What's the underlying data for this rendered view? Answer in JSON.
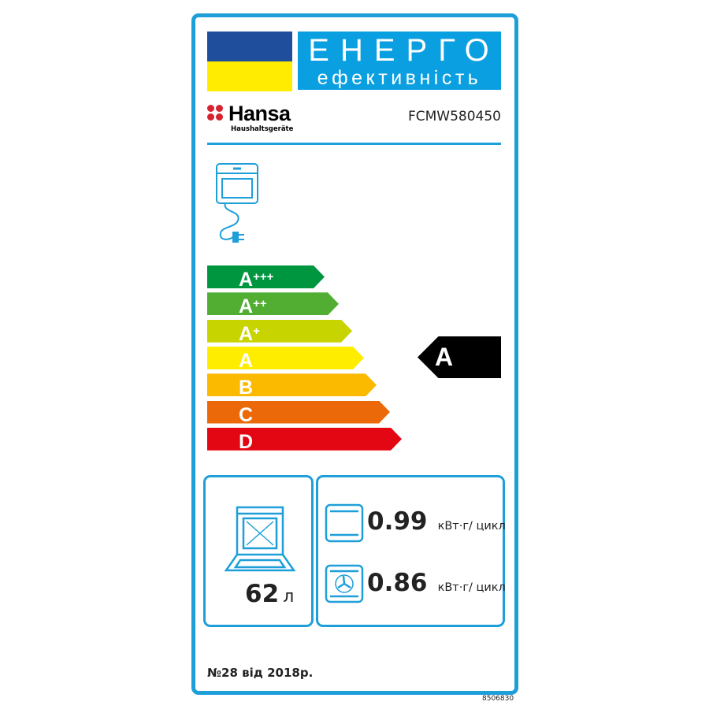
{
  "header": {
    "title_line1": "ЕНЕРГО",
    "title_line2": "ефективність",
    "flag_colors": [
      "#1f4e9c",
      "#ffec00"
    ]
  },
  "brand": {
    "name": "Hansa",
    "subtitle": "Haushaltsgeräte",
    "model": "FCMW580450"
  },
  "scale": [
    {
      "class": "A",
      "plus": "+++",
      "color": "#009640"
    },
    {
      "class": "A",
      "plus": "++",
      "color": "#52ae32"
    },
    {
      "class": "A",
      "plus": "+",
      "color": "#c8d400"
    },
    {
      "class": "A",
      "plus": "",
      "color": "#ffed00"
    },
    {
      "class": "B",
      "plus": "",
      "color": "#fbba00"
    },
    {
      "class": "C",
      "plus": "",
      "color": "#eb6909"
    },
    {
      "class": "D",
      "plus": "",
      "color": "#e30613"
    }
  ],
  "rating": "A",
  "volume": {
    "value": "62",
    "unit": "л"
  },
  "consumption": [
    {
      "mode": "conventional",
      "value": "0.99",
      "unit": "кВт·г/ цикл"
    },
    {
      "mode": "fan-forced",
      "value": "0.86",
      "unit": "кВт·г/ цикл"
    }
  ],
  "footer": "№28 від 2018р.",
  "code": "8506830",
  "accent": "#1e9fd9"
}
